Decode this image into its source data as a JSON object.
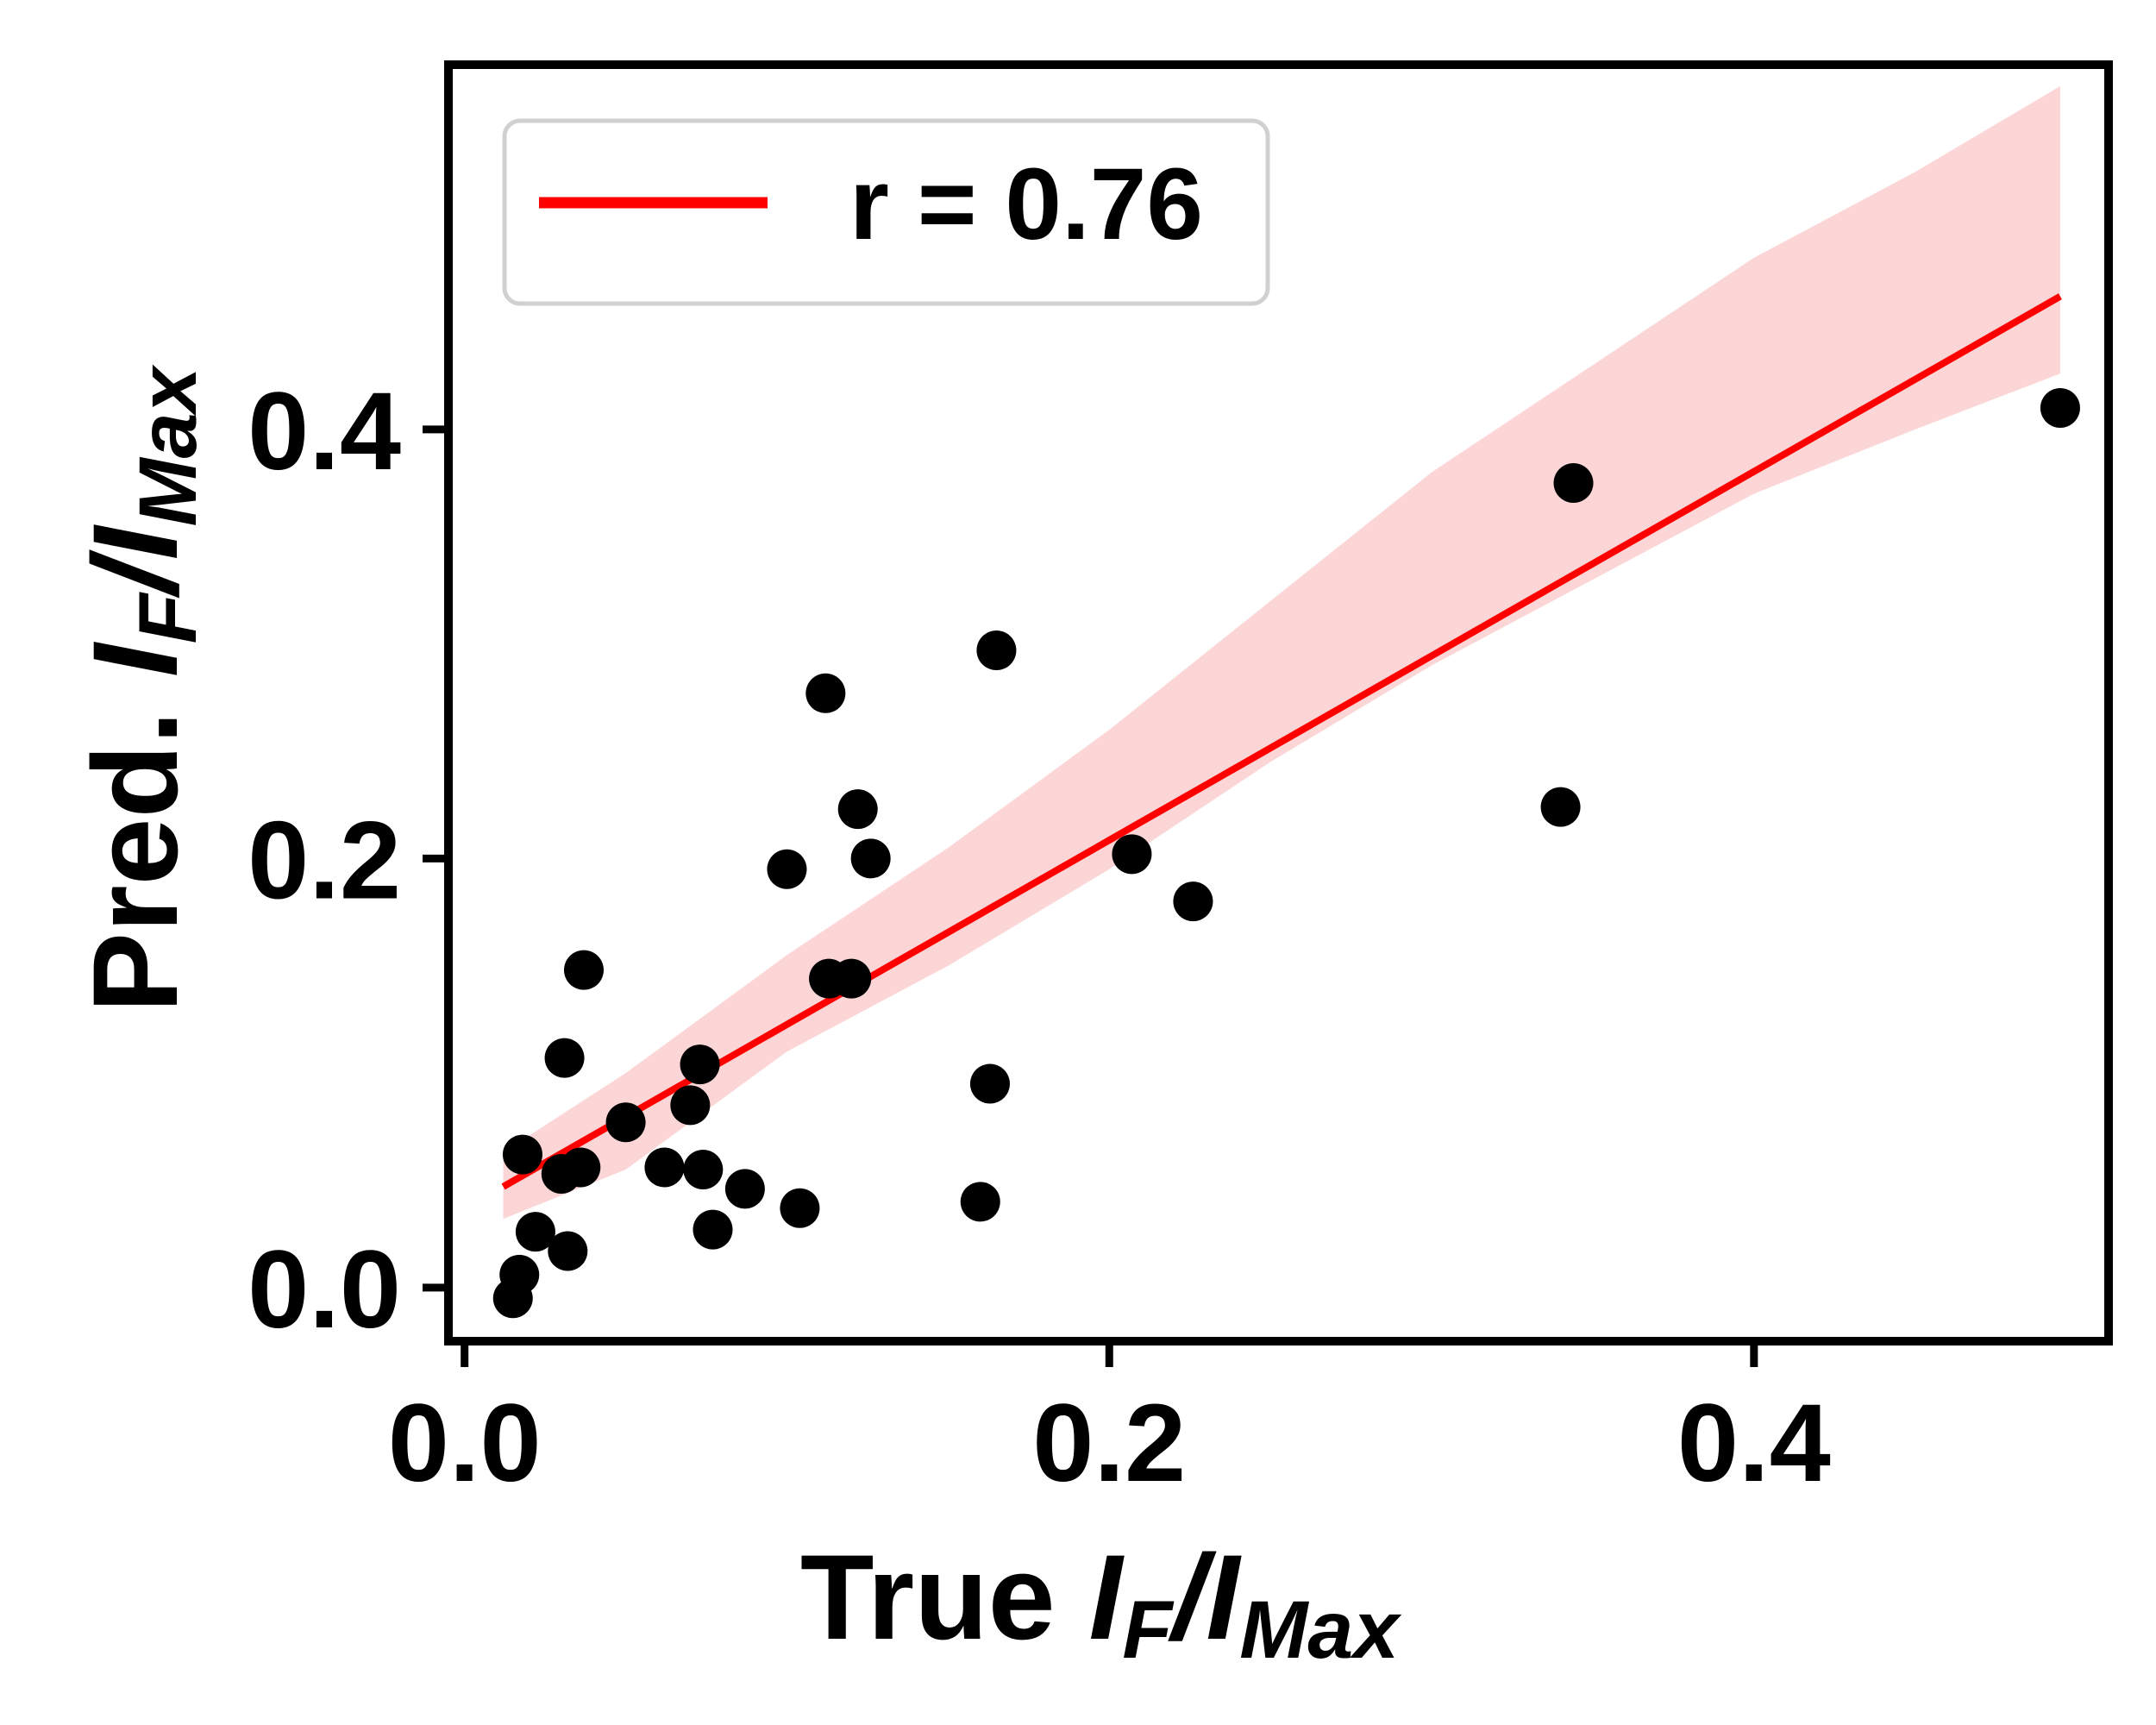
{
  "chart_data": {
    "type": "scatter",
    "title": "",
    "xlabel": {
      "prefix": "True ",
      "I1": "I",
      "sub1": "F",
      "slash": "/",
      "I2": "I",
      "sub2": "Max"
    },
    "ylabel": {
      "prefix": "Pred. ",
      "I1": "I",
      "sub1": "F",
      "slash": "/",
      "I2": "I",
      "sub2": "Max"
    },
    "xlim": [
      -0.005,
      0.51
    ],
    "ylim": [
      -0.025,
      0.57
    ],
    "xticks": [
      0.0,
      0.2,
      0.4
    ],
    "xtick_labels": [
      "0.0",
      "0.2",
      "0.4"
    ],
    "yticks": [
      0.0,
      0.2,
      0.4
    ],
    "ytick_labels": [
      "0.0",
      "0.2",
      "0.4"
    ],
    "grid": false,
    "legend": {
      "placement": "upper-left",
      "entries": [
        {
          "label": "r = 0.76",
          "color": "#ff0000"
        }
      ]
    },
    "colors": {
      "points": "#000000",
      "fit_line": "#ff0000",
      "band": "#fcd6d6"
    },
    "points": [
      {
        "x": 0.015,
        "y": -0.005
      },
      {
        "x": 0.017,
        "y": 0.006
      },
      {
        "x": 0.018,
        "y": 0.062
      },
      {
        "x": 0.022,
        "y": 0.026
      },
      {
        "x": 0.03,
        "y": 0.053
      },
      {
        "x": 0.031,
        "y": 0.107
      },
      {
        "x": 0.032,
        "y": 0.017
      },
      {
        "x": 0.036,
        "y": 0.056
      },
      {
        "x": 0.037,
        "y": 0.148
      },
      {
        "x": 0.05,
        "y": 0.077
      },
      {
        "x": 0.062,
        "y": 0.056
      },
      {
        "x": 0.07,
        "y": 0.085
      },
      {
        "x": 0.073,
        "y": 0.104
      },
      {
        "x": 0.074,
        "y": 0.055
      },
      {
        "x": 0.077,
        "y": 0.027
      },
      {
        "x": 0.087,
        "y": 0.046
      },
      {
        "x": 0.1,
        "y": 0.195
      },
      {
        "x": 0.104,
        "y": 0.037
      },
      {
        "x": 0.112,
        "y": 0.277
      },
      {
        "x": 0.113,
        "y": 0.144
      },
      {
        "x": 0.12,
        "y": 0.144
      },
      {
        "x": 0.122,
        "y": 0.223
      },
      {
        "x": 0.126,
        "y": 0.2
      },
      {
        "x": 0.16,
        "y": 0.04
      },
      {
        "x": 0.163,
        "y": 0.095
      },
      {
        "x": 0.165,
        "y": 0.297
      },
      {
        "x": 0.207,
        "y": 0.202
      },
      {
        "x": 0.226,
        "y": 0.18
      },
      {
        "x": 0.34,
        "y": 0.224
      },
      {
        "x": 0.344,
        "y": 0.375
      },
      {
        "x": 0.495,
        "y": 0.41
      }
    ],
    "fit": {
      "x": [
        0.012,
        0.495
      ],
      "y": [
        0.047,
        0.462
      ]
    },
    "band": {
      "x": [
        0.012,
        0.05,
        0.1,
        0.15,
        0.2,
        0.25,
        0.3,
        0.35,
        0.4,
        0.45,
        0.495
      ],
      "upper": [
        0.063,
        0.1,
        0.155,
        0.205,
        0.26,
        0.32,
        0.38,
        0.43,
        0.48,
        0.52,
        0.56
      ],
      "lower": [
        0.032,
        0.055,
        0.11,
        0.15,
        0.195,
        0.245,
        0.29,
        0.33,
        0.37,
        0.4,
        0.426
      ]
    }
  }
}
